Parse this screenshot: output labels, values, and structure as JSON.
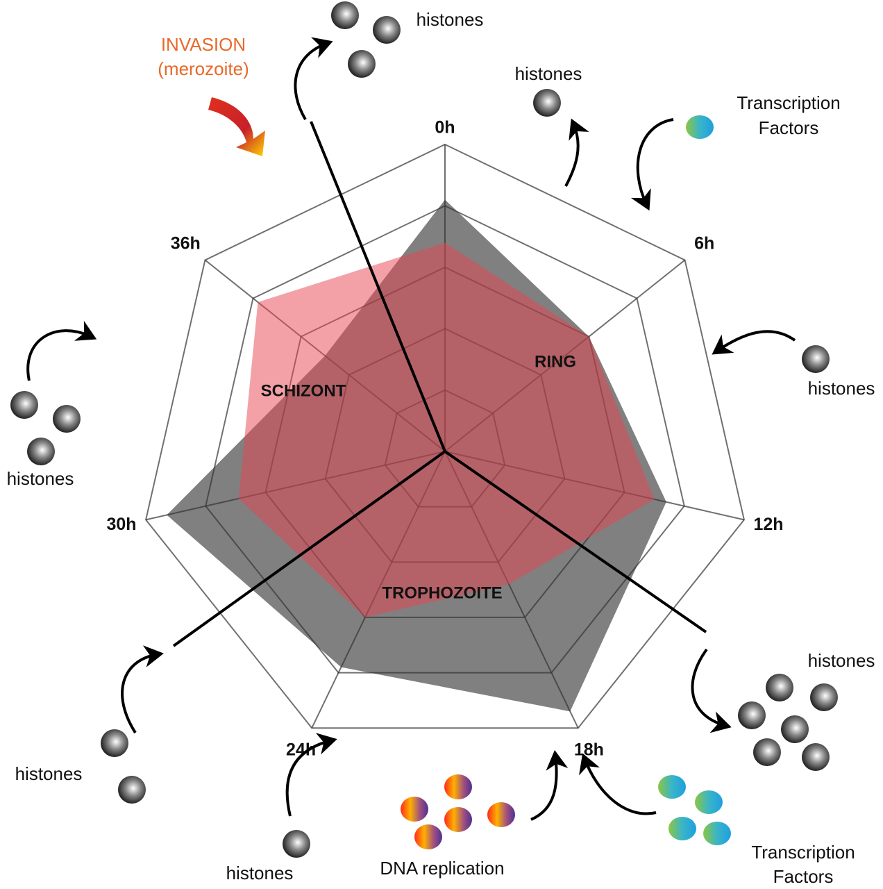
{
  "chart_data": {
    "type": "radar",
    "categories": [
      "0h",
      "6h",
      "12h",
      "18h",
      "24h",
      "30h",
      "36h"
    ],
    "series": [
      {
        "color": "#808080",
        "values": [
          4.1,
          3.0,
          3.7,
          4.7,
          3.9,
          4.65,
          2.5
        ]
      },
      {
        "color": "#e8434f",
        "values": [
          3.4,
          3.0,
          3.5,
          2.4,
          3.0,
          3.45,
          3.9
        ]
      }
    ],
    "rlim": [
      0,
      5
    ],
    "rticks": [
      1,
      2,
      3,
      4,
      5
    ],
    "grid": true
  },
  "stages": [
    "RING",
    "TROPHOZOITE",
    "SCHIZONT"
  ],
  "invasion": [
    "INVASION",
    "(merozoite)"
  ],
  "histones": [
    "histones",
    "histones",
    "histones",
    "histones",
    "histones",
    "histones",
    "histones"
  ],
  "transcription_factors": [
    [
      "Transcription",
      "Factors"
    ],
    [
      "Transcription",
      "Factors"
    ]
  ],
  "dna_replication": "DNA replication"
}
